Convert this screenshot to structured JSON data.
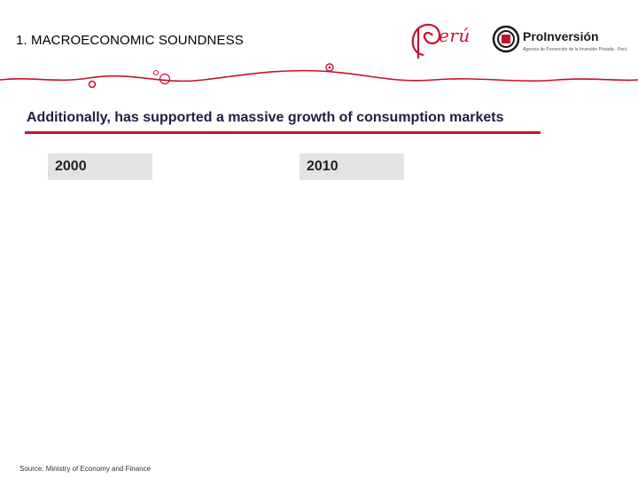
{
  "slide": {
    "title": "1. MACROECONOMIC SOUNDNESS",
    "subtitle": "Additionally, has supported a massive growth of consumption markets",
    "source": "Source: Ministry of Economy and Finance"
  },
  "years": {
    "left": "2000",
    "right": "2010"
  },
  "logos": {
    "peru": "erú",
    "proinversion_name": "ProInversión",
    "proinversion_tagline": "Agencia de Promoción de la Inversión Privada - Perú"
  },
  "colors": {
    "accent_red": "#c8102e",
    "year_box_bg": "#e3e3e3"
  }
}
